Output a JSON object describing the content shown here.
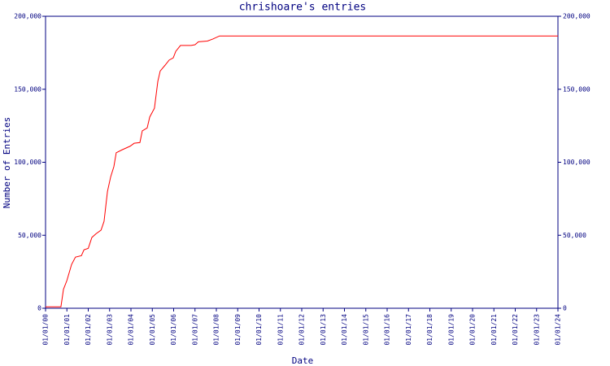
{
  "chart_data": {
    "type": "line",
    "title": "chrishoare's entries",
    "x_label": "Date",
    "y_label": "Number of Entries",
    "x": [
      2000,
      2000.72,
      2000.84,
      2001,
      2001.22,
      2001.4,
      2001.68,
      2001.8,
      2002,
      2002.17,
      2002.36,
      2002.6,
      2002.74,
      2002.9,
      2003.05,
      2003.2,
      2003.31,
      2003.58,
      2003.96,
      2004.15,
      2004.42,
      2004.53,
      2004.76,
      2004.88,
      2005.1,
      2005.26,
      2005.37,
      2005.6,
      2005.79,
      2005.98,
      2006.1,
      2006.32,
      2006.82,
      2007,
      2007.16,
      2007.58,
      2007.85,
      2008.15,
      2024
    ],
    "series": [
      {
        "name": "entries",
        "color": "#ff0000",
        "values": [
          1000,
          1000,
          13000,
          19000,
          30000,
          35000,
          36000,
          40000,
          41000,
          48500,
          51000,
          53500,
          59500,
          80000,
          90000,
          97000,
          106500,
          108500,
          111000,
          113000,
          113500,
          121500,
          123500,
          131000,
          137000,
          155500,
          162500,
          166500,
          170000,
          171500,
          176000,
          180000,
          180000,
          180500,
          182500,
          183000,
          184500,
          186500,
          186500
        ]
      }
    ],
    "xlim": [
      2000,
      2024
    ],
    "xticks": [
      {
        "value": 2000,
        "label": "01/01/00"
      },
      {
        "value": 2001,
        "label": "01/01/01"
      },
      {
        "value": 2002,
        "label": "01/01/02"
      },
      {
        "value": 2003,
        "label": "01/01/03"
      },
      {
        "value": 2004,
        "label": "01/01/04"
      },
      {
        "value": 2005,
        "label": "01/01/05"
      },
      {
        "value": 2006,
        "label": "01/01/06"
      },
      {
        "value": 2007,
        "label": "01/01/07"
      },
      {
        "value": 2008,
        "label": "01/01/08"
      },
      {
        "value": 2009,
        "label": "01/01/09"
      },
      {
        "value": 2010,
        "label": "01/01/10"
      },
      {
        "value": 2011,
        "label": "01/01/11"
      },
      {
        "value": 2012,
        "label": "01/01/12"
      },
      {
        "value": 2013,
        "label": "01/01/13"
      },
      {
        "value": 2014,
        "label": "01/01/14"
      },
      {
        "value": 2015,
        "label": "01/01/15"
      },
      {
        "value": 2016,
        "label": "01/01/16"
      },
      {
        "value": 2017,
        "label": "01/01/17"
      },
      {
        "value": 2018,
        "label": "01/01/18"
      },
      {
        "value": 2019,
        "label": "01/01/19"
      },
      {
        "value": 2020,
        "label": "01/01/20"
      },
      {
        "value": 2021,
        "label": "01/01/21"
      },
      {
        "value": 2022,
        "label": "01/01/22"
      },
      {
        "value": 2023,
        "label": "01/01/23"
      },
      {
        "value": 2024,
        "label": "01/01/24"
      }
    ],
    "ylim": [
      0,
      200000
    ],
    "yticks": [
      0,
      {
        "value": 50000,
        "label": "50,000"
      },
      {
        "value": 100000,
        "label": "100,000"
      },
      {
        "value": 150000,
        "label": "150,000"
      },
      {
        "value": 200000,
        "label": "200,000"
      }
    ],
    "axis_color": "#000080",
    "grid": false
  }
}
